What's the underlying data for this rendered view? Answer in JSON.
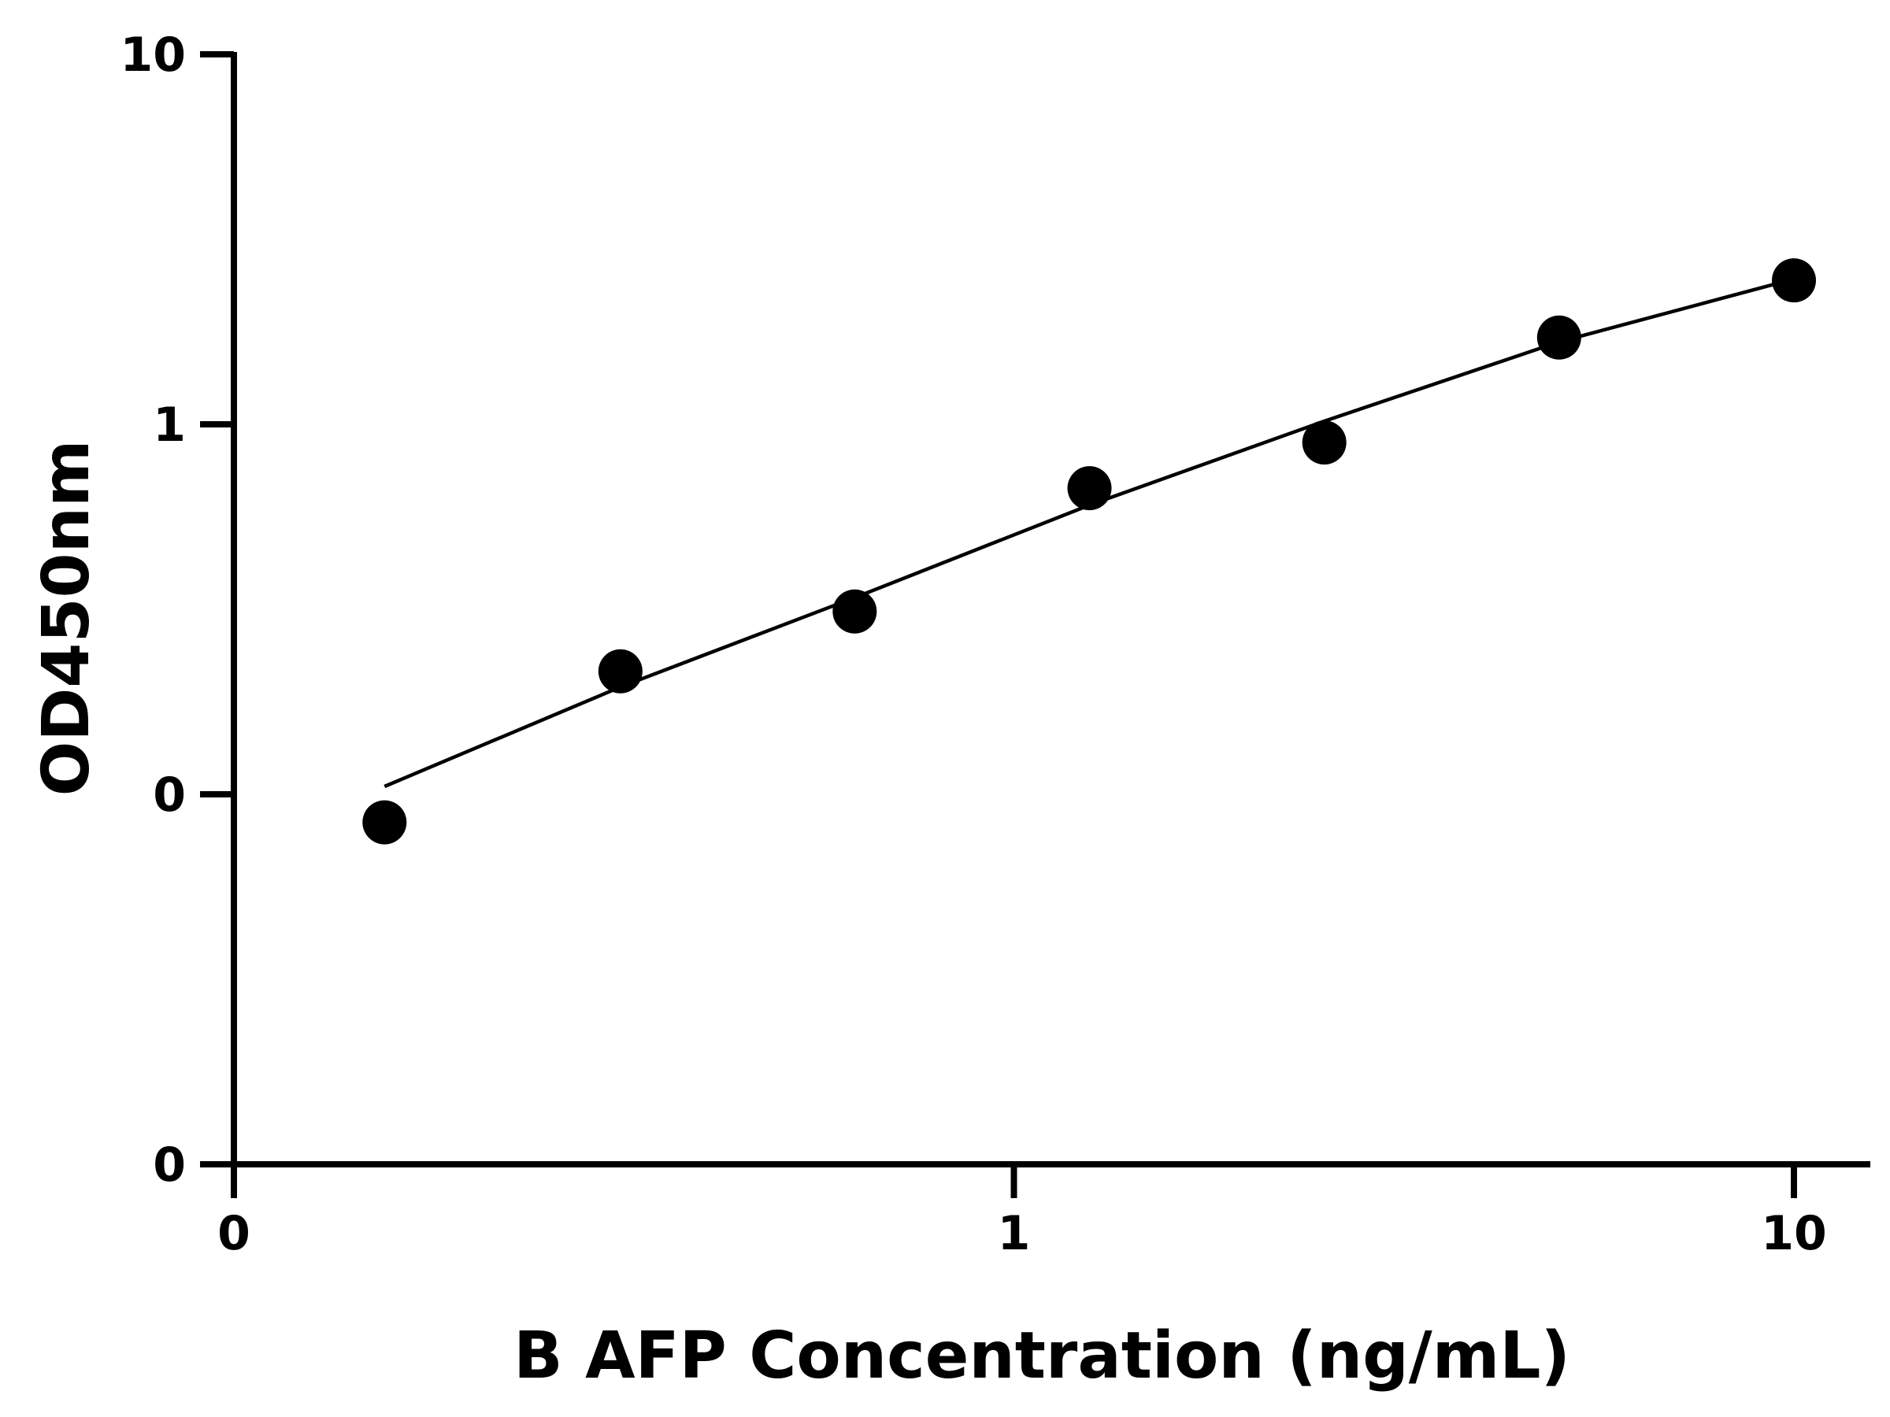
{
  "chart_data": {
    "type": "scatter",
    "xlabel": "B AFP Concentration (ng/mL)",
    "ylabel": "OD450nm",
    "x_scale": "log",
    "y_scale": "log",
    "xlim": [
      0.1,
      10
    ],
    "ylim": [
      0.01,
      10
    ],
    "x_ticks": [
      {
        "value": 0.1,
        "label": "0"
      },
      {
        "value": 1,
        "label": "1"
      },
      {
        "value": 10,
        "label": "10"
      }
    ],
    "y_ticks": [
      {
        "value": 0.01,
        "label": "0"
      },
      {
        "value": 0.1,
        "label": "0"
      },
      {
        "value": 1,
        "label": "1"
      },
      {
        "value": 10,
        "label": "10"
      }
    ],
    "series": [
      {
        "points": [
          {
            "x": 0.156,
            "y": 0.084
          },
          {
            "x": 0.313,
            "y": 0.215
          },
          {
            "x": 0.625,
            "y": 0.312
          },
          {
            "x": 1.25,
            "y": 0.672
          },
          {
            "x": 2.5,
            "y": 0.893
          },
          {
            "x": 5,
            "y": 1.716
          },
          {
            "x": 10,
            "y": 2.449
          }
        ]
      }
    ],
    "fit_curve": [
      {
        "x": 0.156,
        "y": 0.105
      },
      {
        "x": 0.313,
        "y": 0.195
      },
      {
        "x": 0.625,
        "y": 0.34
      },
      {
        "x": 1.25,
        "y": 0.605
      },
      {
        "x": 2.5,
        "y": 1.02
      },
      {
        "x": 5,
        "y": 1.67
      },
      {
        "x": 10,
        "y": 2.47
      }
    ],
    "grid": false,
    "legend": "none",
    "colors": {
      "points": "#000000",
      "line": "#000000",
      "axis": "#000000"
    }
  }
}
